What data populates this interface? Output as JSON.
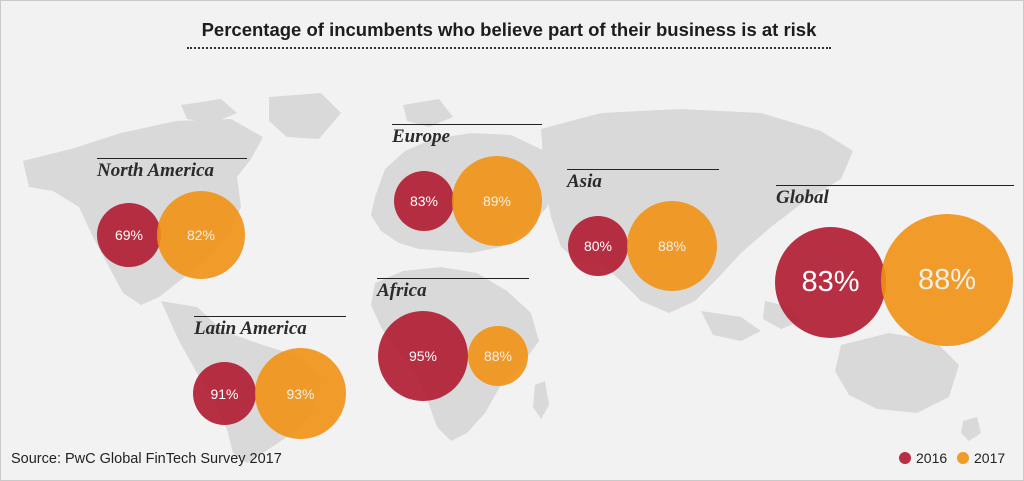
{
  "title": "Percentage of incumbents who believe part of their business is at risk",
  "source": "Source: PwC Global FinTech Survey 2017",
  "colors": {
    "y2016": "#b21e34",
    "y2017": "#f0911a",
    "land": "#d9d9d9",
    "background": "#f2f2f2"
  },
  "legend": {
    "y2016": "2016",
    "y2017": "2017"
  },
  "regions": {
    "north_america": {
      "name": "North America",
      "v2016": "69%",
      "v2017": "82%"
    },
    "europe": {
      "name": "Europe",
      "v2016": "83%",
      "v2017": "89%"
    },
    "asia": {
      "name": "Asia",
      "v2016": "80%",
      "v2017": "88%"
    },
    "africa": {
      "name": "Africa",
      "v2016": "95%",
      "v2017": "88%"
    },
    "latin_america": {
      "name": "Latin America",
      "v2016": "91%",
      "v2017": "93%"
    },
    "global": {
      "name": "Global",
      "v2016": "83%",
      "v2017": "88%"
    }
  },
  "chart_data": {
    "type": "bubble-map",
    "title": "Percentage of incumbents who believe part of their business is at risk",
    "categories": [
      "North America",
      "Europe",
      "Asia",
      "Africa",
      "Latin America",
      "Global"
    ],
    "series": [
      {
        "name": "2016",
        "values": [
          69,
          83,
          80,
          95,
          91,
          83
        ]
      },
      {
        "name": "2017",
        "values": [
          82,
          89,
          88,
          88,
          93,
          88
        ]
      }
    ],
    "unit": "%",
    "legend_position": "bottom-right"
  }
}
